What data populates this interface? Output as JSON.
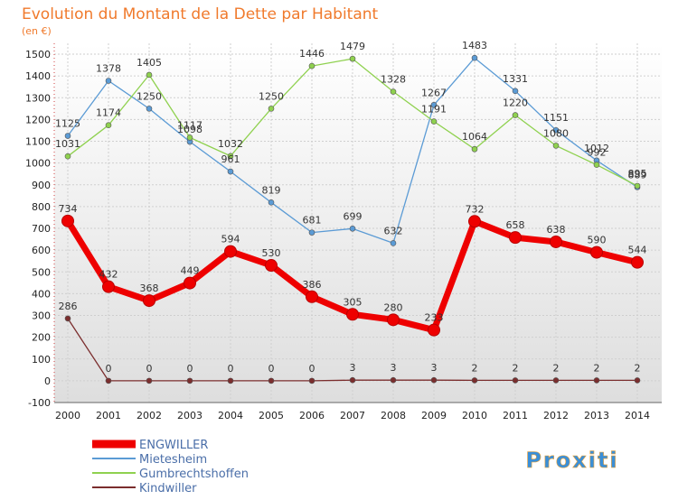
{
  "chart_data": {
    "type": "line",
    "title": "Evolution du Montant de la Dette par Habitant",
    "subtitle": "(en €)",
    "x": [
      "2000",
      "2001",
      "2002",
      "2003",
      "2004",
      "2005",
      "2006",
      "2007",
      "2008",
      "2009",
      "2010",
      "2011",
      "2012",
      "2013",
      "2014"
    ],
    "yticks": [
      -100,
      0,
      100,
      200,
      300,
      400,
      500,
      600,
      700,
      800,
      900,
      1000,
      1100,
      1200,
      1300,
      1400,
      1500
    ],
    "ylim": [
      -100,
      1550
    ],
    "grid": true,
    "legend_placement": "bottom-left",
    "series": [
      {
        "name": "ENGWILLER",
        "color": "#ee0000",
        "values": [
          734,
          432,
          368,
          449,
          594,
          530,
          386,
          305,
          280,
          233,
          732,
          658,
          638,
          590,
          544
        ],
        "labels": [
          "734",
          "432",
          "368",
          "449",
          "594",
          "530",
          "386",
          "305",
          "280",
          "233",
          "732",
          "658",
          "638",
          "590",
          "544"
        ]
      },
      {
        "name": "Mietesheim",
        "color": "#5b9bd5",
        "values": [
          1125,
          1378,
          1250,
          1098,
          961,
          819,
          681,
          699,
          632,
          1267,
          1483,
          1331,
          1151,
          1012,
          889
        ],
        "labels": [
          "1125",
          "1378",
          "1250",
          "1098",
          "961",
          "819",
          "681",
          "699",
          "632",
          "1267",
          "1483",
          "1331",
          "1151",
          "1012",
          "889"
        ]
      },
      {
        "name": "Gumbrechtshoffen",
        "color": "#8fd14f",
        "values": [
          1031,
          1174,
          1405,
          1117,
          1032,
          1250,
          1446,
          1479,
          1328,
          1191,
          1064,
          1220,
          1080,
          992,
          895
        ],
        "labels": [
          "1031",
          "1174",
          "1405",
          "1117",
          "1032",
          "1250",
          "1446",
          "1479",
          "1328",
          "1191",
          "1064",
          "1220",
          "1080",
          "992",
          "895"
        ]
      },
      {
        "name": "Kindwiller",
        "color": "#7b2e2e",
        "values": [
          286,
          0,
          0,
          0,
          0,
          0,
          0,
          3,
          3,
          3,
          2,
          2,
          2,
          2,
          2
        ],
        "labels": [
          "286",
          "0",
          "0",
          "0",
          "0",
          "0",
          "0",
          "3",
          "3",
          "3",
          "2",
          "2",
          "2",
          "2",
          "2"
        ]
      }
    ]
  },
  "logo": {
    "text": "Proxiti"
  }
}
